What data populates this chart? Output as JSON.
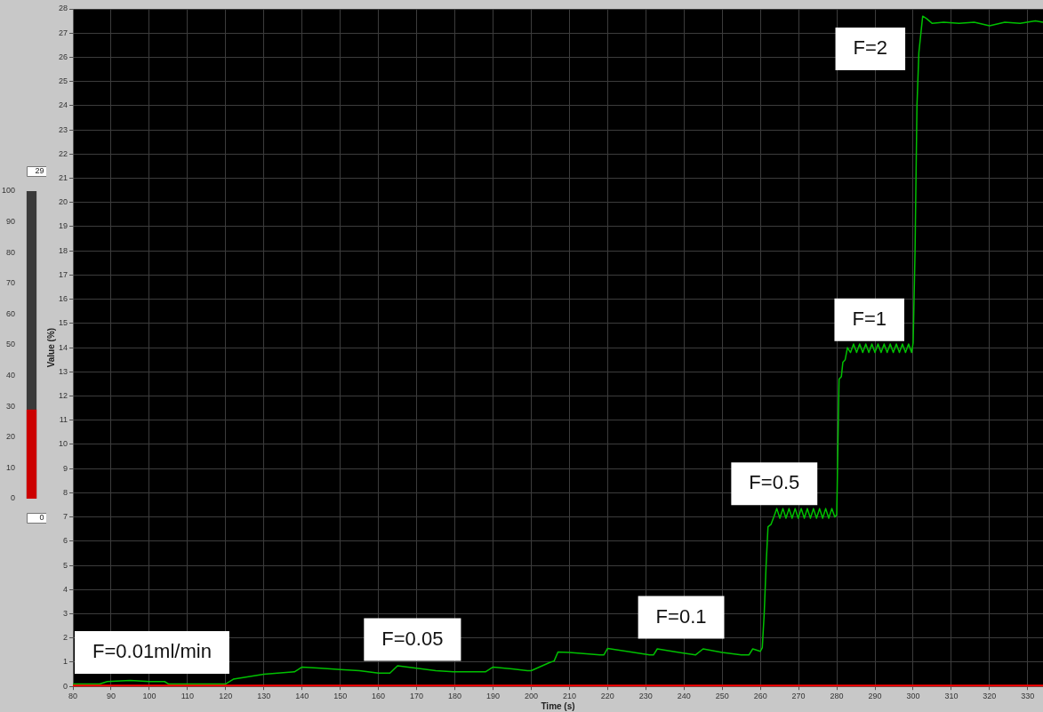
{
  "chart_data": [
    {
      "type": "line",
      "xlabel": "Time (s)",
      "ylabel": "Value (%)",
      "x": [
        80,
        87,
        89,
        95,
        100,
        104,
        105,
        120,
        122,
        130,
        138,
        140,
        145,
        150,
        155,
        160,
        163,
        165,
        170,
        175,
        180,
        188,
        190,
        195,
        199,
        200,
        205,
        206,
        207,
        210,
        218,
        219,
        220,
        225,
        231,
        232,
        233,
        238,
        243,
        245,
        250,
        255,
        257,
        258,
        260,
        260.5,
        261,
        261.5,
        262,
        262.8,
        263.5,
        264.3,
        265.1,
        265.9,
        266.7,
        267.5,
        268.3,
        269.1,
        269.9,
        270.7,
        271.5,
        272.3,
        273.1,
        273.9,
        274.7,
        275.5,
        276.3,
        277.1,
        277.9,
        278.7,
        279.5,
        280,
        280.3,
        280.6,
        281.2,
        281.6,
        282.2,
        282.8,
        283.6,
        284.4,
        285.2,
        286,
        286.8,
        287.6,
        288.4,
        289.2,
        290,
        290.8,
        291.6,
        292.4,
        293.2,
        294,
        294.8,
        295.6,
        296.4,
        297.2,
        298,
        298.8,
        299.6,
        300,
        300.5,
        301,
        301.5,
        302.5,
        303.5,
        305,
        308,
        312,
        316,
        320,
        324,
        328,
        332,
        334
      ],
      "series": [
        {
          "color": "#00c000",
          "values": [
            0.1,
            0.1,
            0.2,
            0.25,
            0.2,
            0.2,
            0.1,
            0.1,
            0.3,
            0.5,
            0.6,
            0.8,
            0.75,
            0.7,
            0.65,
            0.55,
            0.55,
            0.85,
            0.75,
            0.65,
            0.6,
            0.6,
            0.8,
            0.72,
            0.65,
            0.65,
            1.0,
            1.05,
            1.42,
            1.4,
            1.3,
            1.3,
            1.57,
            1.45,
            1.3,
            1.3,
            1.55,
            1.42,
            1.3,
            1.55,
            1.4,
            1.3,
            1.3,
            1.55,
            1.45,
            1.6,
            3,
            5,
            6.6,
            6.7,
            7.0,
            7.35,
            6.95,
            7.35,
            6.95,
            7.35,
            6.95,
            7.35,
            6.95,
            7.35,
            6.95,
            7.35,
            6.95,
            7.35,
            6.95,
            7.35,
            6.95,
            7.35,
            6.95,
            7.35,
            7.0,
            7.1,
            10,
            12.7,
            12.8,
            13.4,
            13.5,
            14.0,
            13.8,
            14.15,
            13.8,
            14.15,
            13.8,
            14.15,
            13.8,
            14.15,
            13.8,
            14.15,
            13.8,
            14.15,
            13.8,
            14.15,
            13.8,
            14.15,
            13.8,
            14.15,
            13.8,
            14.15,
            13.8,
            14.2,
            18,
            24,
            26.2,
            27.7,
            27.6,
            27.4,
            27.45,
            27.4,
            27.45,
            27.3,
            27.45,
            27.4,
            27.5,
            27.45
          ]
        }
      ],
      "xlim": [
        80,
        334
      ],
      "xticks": [
        80,
        90,
        100,
        110,
        120,
        130,
        140,
        150,
        160,
        170,
        180,
        190,
        200,
        210,
        220,
        230,
        240,
        250,
        260,
        270,
        280,
        290,
        300,
        310,
        320,
        330
      ],
      "ylim": [
        0,
        28
      ],
      "yticks": [
        0,
        1,
        2,
        3,
        4,
        5,
        6,
        7,
        8,
        9,
        10,
        11,
        12,
        13,
        14,
        15,
        16,
        17,
        18,
        19,
        20,
        21,
        22,
        23,
        24,
        25,
        26,
        27,
        28
      ],
      "grid": true,
      "marker": "none",
      "ref_lines": [
        {
          "axis": "y",
          "value": 0,
          "color": "#ff0000"
        }
      ],
      "annotations": [
        "F=0.01ml/min",
        "F=0.05",
        "F=0.1",
        "F=0.5",
        "F=1",
        "F=2"
      ]
    },
    {
      "type": "bar",
      "categories": [
        null
      ],
      "values": [
        29
      ],
      "color": "#cc0000",
      "ylim": [
        0,
        100
      ],
      "yticks": [
        0,
        10,
        20,
        30,
        40,
        50,
        60,
        70,
        80,
        90,
        100
      ],
      "annotations": [
        "29",
        "0"
      ]
    }
  ]
}
